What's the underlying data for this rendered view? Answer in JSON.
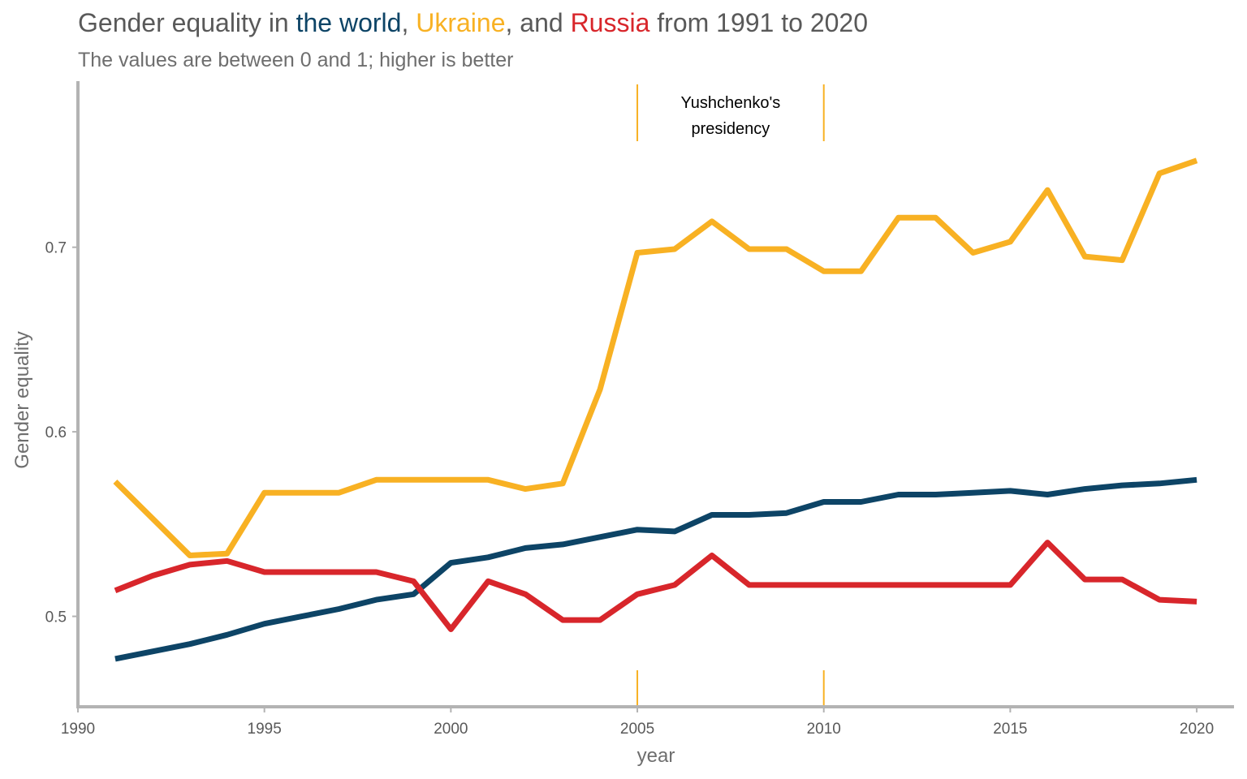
{
  "title": {
    "part1": "Gender equality in ",
    "world": "the world",
    "part2": ", ",
    "ukraine": "Ukraine",
    "part3": ", and ",
    "russia": "Russia",
    "part4": " from 1991 to 2020"
  },
  "subtitle": "The values are between 0 and 1; higher is better",
  "colors": {
    "world": "#0d4466",
    "ukraine": "#f8b123",
    "russia": "#d8262b",
    "axis": "#b3b3b3",
    "text": "#595959"
  },
  "chart_data": {
    "type": "line",
    "xlabel": "year",
    "ylabel": "Gender equality",
    "xlim": [
      1990,
      2021
    ],
    "ylim": [
      0.451,
      0.79
    ],
    "x_ticks": [
      1990,
      1995,
      2000,
      2005,
      2010,
      2015,
      2020
    ],
    "y_ticks": [
      0.5,
      0.6,
      0.7
    ],
    "y_tick_labels": [
      "0.5",
      "0.6",
      "0.7"
    ],
    "x": [
      1991,
      1992,
      1993,
      1994,
      1995,
      1996,
      1997,
      1998,
      1999,
      2000,
      2001,
      2002,
      2003,
      2004,
      2005,
      2006,
      2007,
      2008,
      2009,
      2010,
      2011,
      2012,
      2013,
      2014,
      2015,
      2016,
      2017,
      2018,
      2019,
      2020
    ],
    "series": [
      {
        "key": "world",
        "name": "the world",
        "color": "#0d4466",
        "values": [
          0.477,
          0.481,
          0.485,
          0.49,
          0.496,
          0.5,
          0.504,
          0.509,
          0.512,
          0.529,
          0.532,
          0.537,
          0.539,
          0.543,
          0.547,
          0.546,
          0.555,
          0.555,
          0.556,
          0.562,
          0.562,
          0.566,
          0.566,
          0.567,
          0.568,
          0.566,
          0.569,
          0.571,
          0.572,
          0.574
        ]
      },
      {
        "key": "ukraine",
        "name": "Ukraine",
        "color": "#f8b123",
        "values": [
          0.573,
          0.553,
          0.533,
          0.534,
          0.567,
          0.567,
          0.567,
          0.574,
          0.574,
          0.574,
          0.574,
          0.569,
          0.572,
          0.623,
          0.697,
          0.699,
          0.714,
          0.699,
          0.699,
          0.687,
          0.687,
          0.716,
          0.716,
          0.697,
          0.703,
          0.731,
          0.695,
          0.693,
          0.74,
          0.747
        ]
      },
      {
        "key": "russia",
        "name": "Russia",
        "color": "#d8262b",
        "values": [
          0.514,
          0.522,
          0.528,
          0.53,
          0.524,
          0.524,
          0.524,
          0.524,
          0.519,
          0.493,
          0.519,
          0.512,
          0.498,
          0.498,
          0.512,
          0.517,
          0.533,
          0.517,
          0.517,
          0.517,
          0.517,
          0.517,
          0.517,
          0.517,
          0.517,
          0.54,
          0.52,
          0.52,
          0.509,
          0.508
        ]
      }
    ],
    "annotation": {
      "text_lines": [
        "Yushchenko's",
        "presidency"
      ],
      "x_start": 2005,
      "x_end": 2010,
      "color": "#f8b123"
    },
    "grid": false,
    "legend": "none (series named in title)"
  }
}
